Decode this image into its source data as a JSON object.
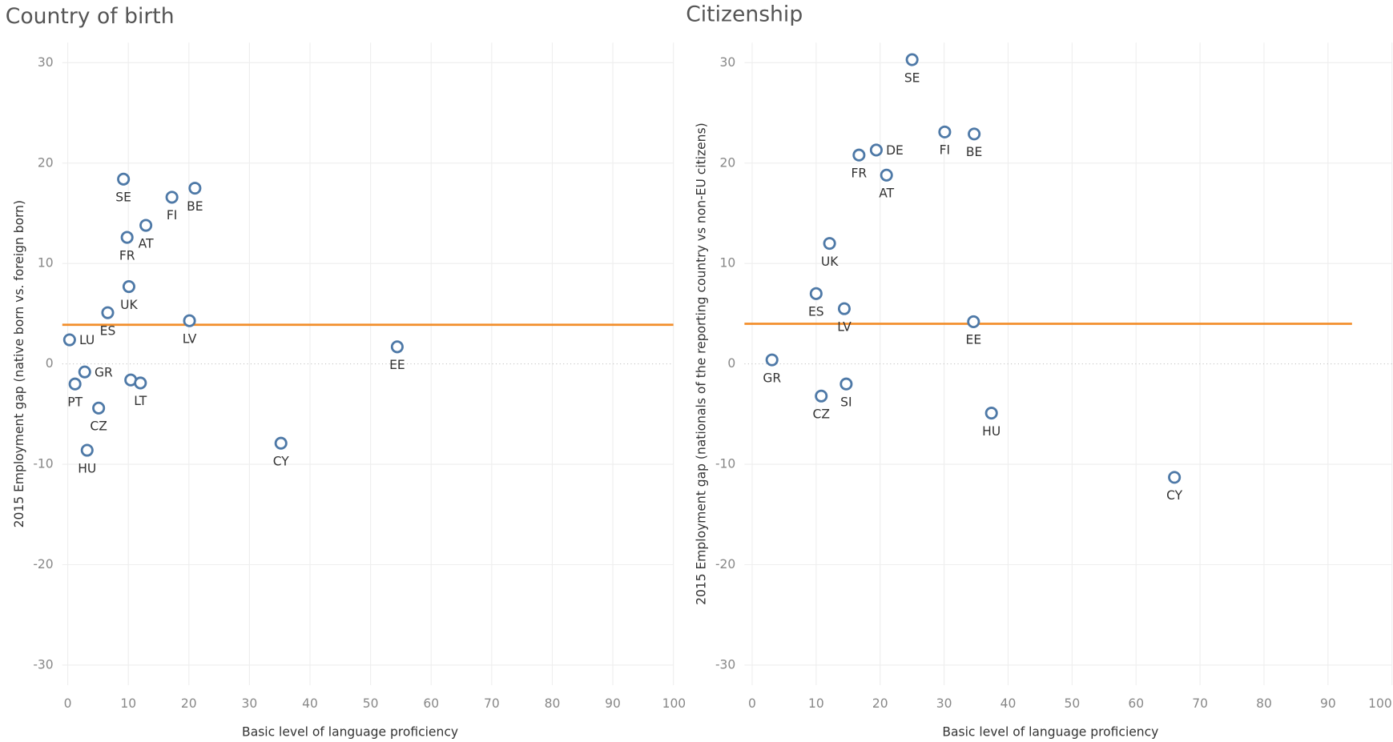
{
  "chart_data": [
    {
      "type": "scatter",
      "title": "Country of birth",
      "x_label": "Basic level of language proficiency",
      "y_label": "2015 Employment gap (native born vs. foreign born)",
      "labels": [
        "SE",
        "BE",
        "FI",
        "AT",
        "FR",
        "UK",
        "ES",
        "LV",
        "LU",
        "EE",
        "GR",
        "PT",
        null,
        "LT",
        "CZ",
        "HU",
        "CY"
      ],
      "x": [
        9.2,
        21.0,
        17.2,
        12.9,
        9.8,
        10.1,
        6.6,
        20.1,
        0.3,
        54.4,
        2.8,
        1.2,
        10.4,
        12.0,
        5.1,
        3.2,
        35.2
      ],
      "y": [
        18.4,
        17.5,
        16.6,
        13.8,
        12.6,
        7.7,
        5.1,
        4.3,
        2.4,
        1.7,
        -0.8,
        -2.0,
        -1.6,
        -1.9,
        -4.4,
        -8.6,
        -7.9
      ],
      "color": "#4e79a7",
      "reference_line": {
        "value": 3.9,
        "color": "#f28e2b"
      },
      "xlim": [
        -0.9,
        100
      ],
      "ylim": [
        -32,
        32
      ],
      "xticks": [
        0,
        10,
        20,
        30,
        40,
        50,
        60,
        70,
        80,
        90,
        100
      ],
      "yticks": [
        -30,
        -20,
        -10,
        0,
        10,
        20,
        30
      ],
      "grid": true
    },
    {
      "type": "scatter",
      "title": "Citizenship",
      "x_label": "Basic level of language proficiency",
      "y_label": "2015 Employment gap (nationals of the reporting country vs non-EU citizens)",
      "labels": [
        "SE",
        "FI",
        "BE",
        "DE",
        "FR",
        "AT",
        "UK",
        "ES",
        "LV",
        "EE",
        "GR",
        "CZ",
        "SI",
        "HU",
        "CY"
      ],
      "x": [
        25.0,
        30.1,
        34.7,
        19.4,
        16.7,
        21.0,
        12.1,
        10.0,
        14.4,
        34.6,
        3.1,
        10.8,
        14.7,
        37.4,
        66.0
      ],
      "y": [
        30.3,
        23.1,
        22.9,
        21.3,
        20.8,
        18.8,
        12.0,
        7.0,
        5.5,
        4.2,
        0.4,
        -3.2,
        -2.0,
        -4.9,
        -11.3
      ],
      "color": "#4e79a7",
      "reference_line": {
        "value": 4.0,
        "color": "#f28e2b"
      },
      "xlim": [
        -1.2,
        100
      ],
      "ylim": [
        -32,
        32
      ],
      "xticks": [
        0,
        10,
        20,
        30,
        40,
        50,
        60,
        70,
        80,
        90,
        100
      ],
      "yticks": [
        -30,
        -20,
        -10,
        0,
        10,
        20,
        30
      ],
      "grid": true
    }
  ]
}
